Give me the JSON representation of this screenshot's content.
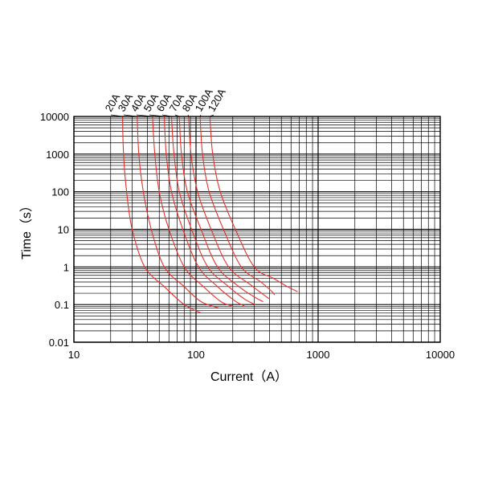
{
  "chart_data": {
    "type": "line",
    "title": "",
    "xlabel": "Current（A）",
    "ylabel": "Time（s）",
    "x_scale": "log",
    "y_scale": "log",
    "xlim": [
      10,
      10000
    ],
    "ylim": [
      0.01,
      10000
    ],
    "x_tick_labels": [
      "10",
      "100",
      "1000",
      "10000"
    ],
    "y_tick_labels": [
      "10000",
      "1000",
      "100",
      "10",
      "1",
      "0.1",
      "0.01"
    ],
    "grid": true,
    "legend": "curve labels at top, rotated",
    "curve_color": "#e8302a",
    "series": [
      {
        "name": "20A",
        "points": [
          [
            25,
            10000
          ],
          [
            25.5,
            1000
          ],
          [
            27,
            100
          ],
          [
            30,
            10
          ],
          [
            38,
            1
          ],
          [
            55,
            0.3
          ],
          [
            80,
            0.1
          ],
          [
            110,
            0.06
          ]
        ]
      },
      {
        "name": "30A",
        "points": [
          [
            33,
            10000
          ],
          [
            34,
            1000
          ],
          [
            37,
            100
          ],
          [
            43,
            10
          ],
          [
            55,
            1
          ],
          [
            80,
            0.3
          ],
          [
            110,
            0.12
          ],
          [
            155,
            0.08
          ]
        ]
      },
      {
        "name": "40A",
        "points": [
          [
            44,
            10000
          ],
          [
            46,
            1000
          ],
          [
            50,
            100
          ],
          [
            60,
            10
          ],
          [
            80,
            1
          ],
          [
            115,
            0.3
          ],
          [
            160,
            0.12
          ],
          [
            200,
            0.09
          ]
        ]
      },
      {
        "name": "50A",
        "points": [
          [
            55,
            10000
          ],
          [
            57,
            1000
          ],
          [
            63,
            100
          ],
          [
            78,
            10
          ],
          [
            105,
            1
          ],
          [
            150,
            0.3
          ],
          [
            205,
            0.13
          ],
          [
            250,
            0.09
          ]
        ]
      },
      {
        "name": "60A",
        "points": [
          [
            63,
            10000
          ],
          [
            66,
            1000
          ],
          [
            73,
            100
          ],
          [
            92,
            10
          ],
          [
            125,
            1
          ],
          [
            185,
            0.3
          ],
          [
            250,
            0.14
          ],
          [
            305,
            0.1
          ]
        ]
      },
      {
        "name": "70A",
        "points": [
          [
            73,
            10000
          ],
          [
            76,
            1000
          ],
          [
            85,
            100
          ],
          [
            110,
            10
          ],
          [
            150,
            1
          ],
          [
            225,
            0.3
          ],
          [
            300,
            0.16
          ],
          [
            355,
            0.12
          ]
        ]
      },
      {
        "name": "80A",
        "points": [
          [
            87,
            10000
          ],
          [
            91,
            1000
          ],
          [
            103,
            100
          ],
          [
            133,
            10
          ],
          [
            185,
            1
          ],
          [
            275,
            0.35
          ],
          [
            360,
            0.18
          ],
          [
            400,
            0.14
          ]
        ]
      },
      {
        "name": "100A",
        "points": [
          [
            108,
            10000
          ],
          [
            113,
            1000
          ],
          [
            128,
            100
          ],
          [
            168,
            10
          ],
          [
            235,
            1
          ],
          [
            340,
            0.4
          ],
          [
            420,
            0.22
          ],
          [
            440,
            0.18
          ]
        ]
      },
      {
        "name": "120A",
        "points": [
          [
            130,
            10000
          ],
          [
            137,
            1000
          ],
          [
            158,
            100
          ],
          [
            210,
            10
          ],
          [
            300,
            1
          ],
          [
            430,
            0.5
          ],
          [
            560,
            0.3
          ],
          [
            680,
            0.22
          ]
        ]
      }
    ]
  }
}
